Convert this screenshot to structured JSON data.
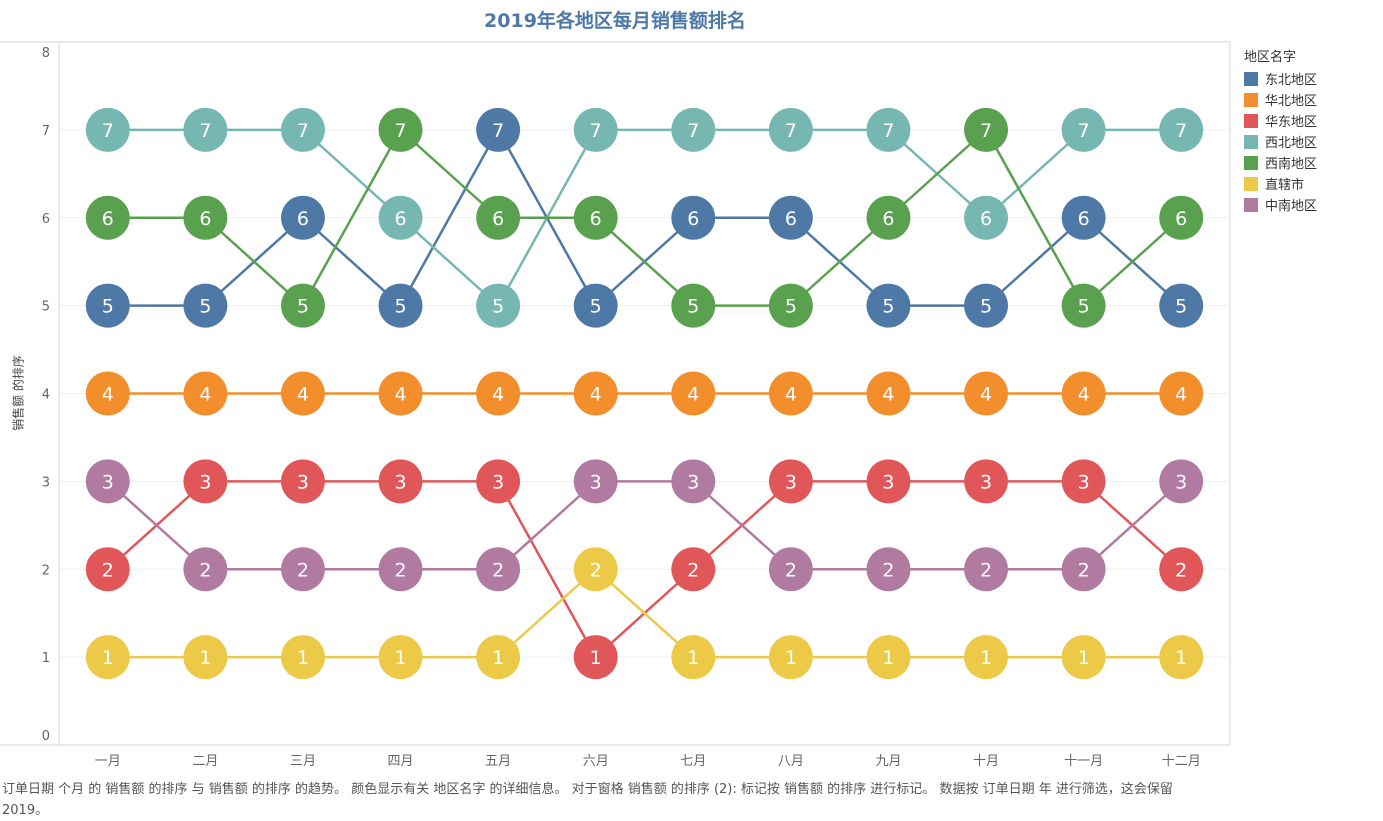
{
  "chart_data": {
    "type": "line",
    "title": "2019年各地区每月销售额排名",
    "xlabel": "",
    "ylabel": "销售额 的排序",
    "ylim": [
      0,
      8
    ],
    "yticks": [
      "0",
      "1",
      "2",
      "3",
      "4",
      "5",
      "6",
      "7",
      "8"
    ],
    "categories": [
      "一月",
      "二月",
      "三月",
      "四月",
      "五月",
      "六月",
      "七月",
      "八月",
      "九月",
      "十月",
      "十一月",
      "十二月"
    ],
    "legend_title": "地区名字",
    "legend_position": "right",
    "series": [
      {
        "name": "东北地区",
        "color": "#4e79a7",
        "values": [
          5,
          5,
          6,
          5,
          7,
          5,
          6,
          6,
          5,
          5,
          6,
          5
        ]
      },
      {
        "name": "华北地区",
        "color": "#f28e2b",
        "values": [
          4,
          4,
          4,
          4,
          4,
          4,
          4,
          4,
          4,
          4,
          4,
          4
        ]
      },
      {
        "name": "华东地区",
        "color": "#e15759",
        "values": [
          2,
          3,
          3,
          3,
          3,
          1,
          2,
          3,
          3,
          3,
          3,
          2
        ]
      },
      {
        "name": "西北地区",
        "color": "#76b7b2",
        "values": [
          7,
          7,
          7,
          6,
          5,
          7,
          7,
          7,
          7,
          6,
          7,
          7
        ]
      },
      {
        "name": "西南地区",
        "color": "#59a14f",
        "values": [
          6,
          6,
          5,
          7,
          6,
          6,
          5,
          5,
          6,
          7,
          5,
          6
        ]
      },
      {
        "name": "直辖市",
        "color": "#edc948",
        "values": [
          1,
          1,
          1,
          1,
          1,
          2,
          1,
          1,
          1,
          1,
          1,
          1
        ]
      },
      {
        "name": "中南地区",
        "color": "#b07aa1",
        "values": [
          3,
          2,
          2,
          2,
          2,
          3,
          3,
          2,
          2,
          2,
          2,
          3
        ]
      }
    ]
  },
  "caption": "订单日期 个月 的 销售额 的排序 与 销售额 的排序 的趋势。 颜色显示有关 地区名字 的详细信息。 对于窗格 销售额 的排序 (2): 标记按 销售额 的排序 进行标记。 数据按 订单日期 年 进行筛选，这会保留 2019。"
}
